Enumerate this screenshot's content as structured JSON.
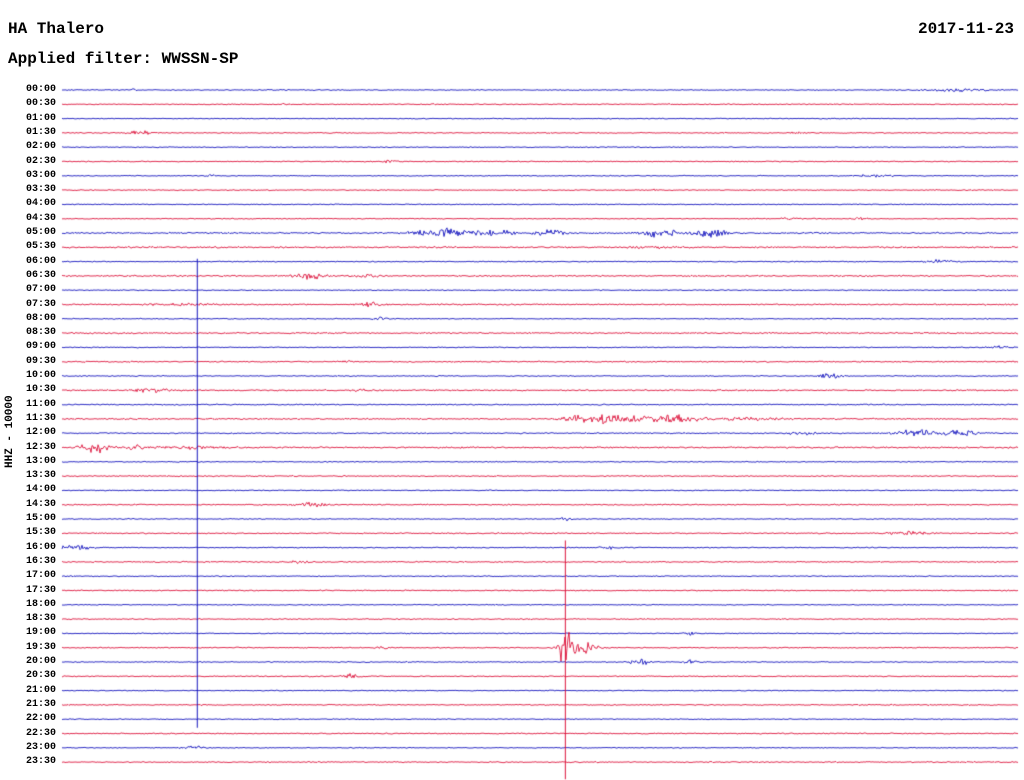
{
  "header": {
    "station": "HA Thalero",
    "date": "2017-11-23",
    "filter": "Applied filter: WWSSN-SP"
  },
  "axis": {
    "left_label": "HHZ - 10000"
  },
  "chart_data": {
    "type": "line",
    "subtype": "helicorder-seismogram",
    "title": "HA Thalero 2017-11-23 (HHZ, filter WWSSN-SP)",
    "ylabel": "HHZ - 10000",
    "minutes_per_row": 30,
    "event_format": "[x_fraction_of_row, amplitude_px, gaussian_sigma_fraction]",
    "colors": {
      "b": "#1414bd",
      "r": "#dc143c",
      "text": "#000000",
      "background": "#ffffff"
    },
    "rows": [
      {
        "t": "00:00",
        "c": "b",
        "base": 0.6,
        "ev": [
          [
            0.076,
            1.2,
            0.004
          ],
          [
            0.934,
            1.6,
            0.02
          ]
        ]
      },
      {
        "t": "00:30",
        "c": "r",
        "base": 0.6,
        "ev": [
          [
            0.233,
            1.4,
            0.005
          ]
        ]
      },
      {
        "t": "01:00",
        "c": "b",
        "base": 0.55,
        "ev": []
      },
      {
        "t": "01:30",
        "c": "r",
        "base": 0.6,
        "ev": [
          [
            0.082,
            3.2,
            0.007
          ],
          [
            0.767,
            1.2,
            0.005
          ]
        ]
      },
      {
        "t": "02:00",
        "c": "b",
        "base": 0.55,
        "ev": []
      },
      {
        "t": "02:30",
        "c": "r",
        "base": 0.6,
        "ev": [
          [
            0.343,
            1.2,
            0.006
          ]
        ]
      },
      {
        "t": "03:00",
        "c": "b",
        "base": 0.55,
        "ev": [
          [
            0.155,
            1.3,
            0.004
          ],
          [
            0.85,
            1.6,
            0.012
          ]
        ]
      },
      {
        "t": "03:30",
        "c": "r",
        "base": 0.6,
        "ev": [
          [
            0.62,
            1.3,
            0.005
          ]
        ]
      },
      {
        "t": "04:00",
        "c": "b",
        "base": 0.55,
        "ev": []
      },
      {
        "t": "04:30",
        "c": "r",
        "base": 0.6,
        "ev": [
          [
            0.761,
            1.3,
            0.005
          ],
          [
            0.835,
            1.2,
            0.005
          ]
        ]
      },
      {
        "t": "05:00",
        "c": "b",
        "base": 0.9,
        "ev": [
          [
            0.4,
            5.5,
            0.02
          ],
          [
            0.455,
            3.0,
            0.012
          ],
          [
            0.51,
            3.5,
            0.01
          ],
          [
            0.625,
            4.5,
            0.014
          ],
          [
            0.68,
            4.5,
            0.012
          ]
        ]
      },
      {
        "t": "05:30",
        "c": "r",
        "base": 0.9,
        "ev": [
          [
            0.62,
            1.2,
            0.02
          ]
        ]
      },
      {
        "t": "06:00",
        "c": "b",
        "base": 0.6,
        "ev": [
          [
            0.918,
            2.2,
            0.01
          ]
        ]
      },
      {
        "t": "06:30",
        "c": "r",
        "base": 0.85,
        "ev": [
          [
            0.259,
            3.2,
            0.012
          ],
          [
            0.32,
            1.5,
            0.01
          ]
        ]
      },
      {
        "t": "07:00",
        "c": "b",
        "base": 0.6,
        "ev": []
      },
      {
        "t": "07:30",
        "c": "r",
        "base": 0.8,
        "ev": [
          [
            0.322,
            2.8,
            0.007
          ],
          [
            0.12,
            1.2,
            0.02
          ]
        ]
      },
      {
        "t": "08:00",
        "c": "b",
        "base": 0.6,
        "ev": [
          [
            0.333,
            1.8,
            0.005
          ]
        ]
      },
      {
        "t": "08:30",
        "c": "r",
        "base": 0.85,
        "ev": []
      },
      {
        "t": "09:00",
        "c": "b",
        "base": 0.6,
        "ev": [
          [
            0.981,
            1.8,
            0.006
          ]
        ]
      },
      {
        "t": "09:30",
        "c": "r",
        "base": 0.75,
        "ev": [
          [
            0.301,
            1.4,
            0.006
          ]
        ]
      },
      {
        "t": "10:00",
        "c": "b",
        "base": 0.6,
        "ev": [
          [
            0.803,
            3.0,
            0.008
          ]
        ]
      },
      {
        "t": "10:30",
        "c": "r",
        "base": 0.8,
        "ev": [
          [
            0.092,
            2.2,
            0.012
          ],
          [
            0.312,
            1.3,
            0.005
          ]
        ]
      },
      {
        "t": "11:00",
        "c": "b",
        "base": 0.7,
        "ev": []
      },
      {
        "t": "11:30",
        "c": "r",
        "base": 0.85,
        "ev": [
          [
            0.537,
            3.5,
            0.014
          ],
          [
            0.568,
            5.5,
            0.01
          ],
          [
            0.605,
            3.5,
            0.014
          ],
          [
            0.646,
            4.0,
            0.016
          ],
          [
            0.72,
            1.8,
            0.02
          ]
        ]
      },
      {
        "t": "12:00",
        "c": "b",
        "base": 0.7,
        "ev": [
          [
            0.777,
            2.6,
            0.01
          ],
          [
            0.892,
            4.5,
            0.014
          ],
          [
            0.94,
            3.5,
            0.012
          ]
        ]
      },
      {
        "t": "12:30",
        "c": "r",
        "base": 0.9,
        "ev": [
          [
            0.035,
            5.5,
            0.012
          ],
          [
            0.075,
            2.5,
            0.01
          ],
          [
            0.13,
            1.5,
            0.02
          ]
        ]
      },
      {
        "t": "13:00",
        "c": "b",
        "base": 0.6,
        "ev": []
      },
      {
        "t": "13:30",
        "c": "r",
        "base": 0.7,
        "ev": []
      },
      {
        "t": "14:00",
        "c": "b",
        "base": 0.55,
        "ev": []
      },
      {
        "t": "14:30",
        "c": "r",
        "base": 0.7,
        "ev": [
          [
            0.259,
            3.0,
            0.011
          ]
        ]
      },
      {
        "t": "15:00",
        "c": "b",
        "base": 0.6,
        "ev": [
          [
            0.526,
            2.2,
            0.005
          ]
        ]
      },
      {
        "t": "15:30",
        "c": "r",
        "base": 0.7,
        "ev": [
          [
            0.887,
            2.6,
            0.013
          ]
        ]
      },
      {
        "t": "16:00",
        "c": "b",
        "base": 0.6,
        "ev": [
          [
            0.014,
            2.6,
            0.012
          ],
          [
            0.573,
            2.2,
            0.006
          ]
        ]
      },
      {
        "t": "16:30",
        "c": "r",
        "base": 0.7,
        "ev": [
          [
            0.249,
            1.8,
            0.006
          ]
        ]
      },
      {
        "t": "17:00",
        "c": "b",
        "base": 0.6,
        "ev": []
      },
      {
        "t": "17:30",
        "c": "r",
        "base": 0.65,
        "ev": []
      },
      {
        "t": "18:00",
        "c": "b",
        "base": 0.55,
        "ev": []
      },
      {
        "t": "18:30",
        "c": "r",
        "base": 0.65,
        "ev": []
      },
      {
        "t": "19:00",
        "c": "b",
        "base": 0.55,
        "ev": [
          [
            0.657,
            1.4,
            0.005
          ]
        ]
      },
      {
        "t": "19:30",
        "c": "r",
        "base": 0.65,
        "ev": [
          [
            0.338,
            1.6,
            0.005
          ],
          [
            0.526,
            22,
            0.005
          ],
          [
            0.545,
            7,
            0.009
          ]
        ]
      },
      {
        "t": "20:00",
        "c": "b",
        "base": 0.6,
        "ev": [
          [
            0.605,
            2.8,
            0.008
          ],
          [
            0.657,
            2.2,
            0.006
          ]
        ]
      },
      {
        "t": "20:30",
        "c": "r",
        "base": 0.65,
        "ev": [
          [
            0.301,
            2.6,
            0.006
          ]
        ]
      },
      {
        "t": "21:00",
        "c": "b",
        "base": 0.55,
        "ev": []
      },
      {
        "t": "21:30",
        "c": "r",
        "base": 0.65,
        "ev": []
      },
      {
        "t": "22:00",
        "c": "b",
        "base": 0.55,
        "ev": []
      },
      {
        "t": "22:30",
        "c": "r",
        "base": 0.65,
        "ev": []
      },
      {
        "t": "23:00",
        "c": "b",
        "base": 0.55,
        "ev": [
          [
            0.139,
            1.8,
            0.008
          ]
        ]
      },
      {
        "t": "23:30",
        "c": "r",
        "base": 0.65,
        "ev": []
      }
    ],
    "vlines": [
      {
        "x": 0.141,
        "c": "b",
        "r0": 11.8,
        "r1": 44.6
      },
      {
        "x": 0.526,
        "c": "r",
        "r0": 31.5,
        "r1": 48.2
      }
    ]
  }
}
